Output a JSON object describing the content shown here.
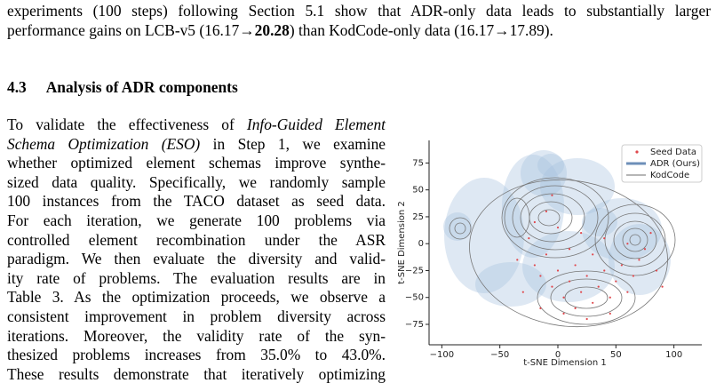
{
  "intro": {
    "lines": [
      [
        "experiments (100 steps) following Section 5.1 show that ADR-only data leads to substantially larger"
      ],
      [
        "performance gains on LCB-v5 (16.17→",
        "20.28",
        ") than KodCode-only data (16.17→",
        "17.89",
        ")."
      ]
    ]
  },
  "section": {
    "number": "4.3",
    "title": "Analysis of ADR components"
  },
  "body": {
    "lines": [
      [
        "To validate the effectiveness of ",
        "Info-Guided Element"
      ],
      [
        "Schema Optimization (ESO)",
        " in Step 1, we examine"
      ],
      [
        "whether optimized element schemas improve synthe-"
      ],
      [
        "sized data quality. Specifically, we randomly sample"
      ],
      [
        "100 instances from the TACO dataset as seed data."
      ],
      [
        "For each iteration, we generate 100 problems via"
      ],
      [
        "controlled element recombination under the ASR"
      ],
      [
        "paradigm. We then evaluate the diversity and valid-"
      ],
      [
        "ity rate of problems. The evaluation results are in"
      ],
      [
        "Table 3. As the optimization proceeds, we observe a"
      ],
      [
        "consistent improvement in problem diversity across"
      ],
      [
        "iterations. Moreover, the validity rate of the syn-"
      ],
      [
        "thesized problems increases from 35.0% to 43.0%."
      ],
      [
        "These results demonstrate that iteratively optimizing"
      ]
    ]
  },
  "chart_data": {
    "type": "scatter",
    "x_label": "t-SNE Dimension 1",
    "y_label": "t-SNE Dimension 2",
    "xlim": [
      -111,
      124
    ],
    "ylim": [
      -94,
      96
    ],
    "xticks": [
      {
        "value": -100,
        "label": "−100"
      },
      {
        "value": -50,
        "label": "−50"
      },
      0,
      50,
      100
    ],
    "yticks": [
      {
        "value": -75,
        "label": "−75"
      },
      {
        "value": -50,
        "label": "−50"
      },
      {
        "value": -25,
        "label": "−25"
      },
      0,
      25,
      50,
      75
    ],
    "legend": "upper right",
    "series": [
      {
        "name": "Seed Data",
        "color": "#e0474c",
        "x": [
          -20,
          -15,
          -10,
          -5,
          0,
          5,
          10,
          15,
          20,
          25,
          30,
          35,
          40,
          45,
          50,
          55,
          60,
          65,
          70,
          75,
          80,
          85,
          -25,
          -20,
          -10,
          0,
          10,
          20,
          30,
          40,
          -30,
          -15,
          5,
          25,
          45,
          -5,
          60,
          90,
          -35,
          15
        ],
        "y": [
          -20,
          -30,
          -10,
          -40,
          -25,
          -50,
          -35,
          -20,
          -45,
          -30,
          -55,
          -40,
          -25,
          -50,
          -35,
          -20,
          -45,
          -30,
          -15,
          -5,
          10,
          -25,
          5,
          20,
          30,
          15,
          -5,
          10,
          -10,
          5,
          -45,
          -60,
          -65,
          -70,
          -65,
          45,
          0,
          -40,
          -15,
          -60
        ]
      },
      {
        "name": "ADR (Ours)",
        "color": "#6d8fb8"
      },
      {
        "name": "KodCode",
        "color": "#8a8a8a"
      }
    ]
  }
}
